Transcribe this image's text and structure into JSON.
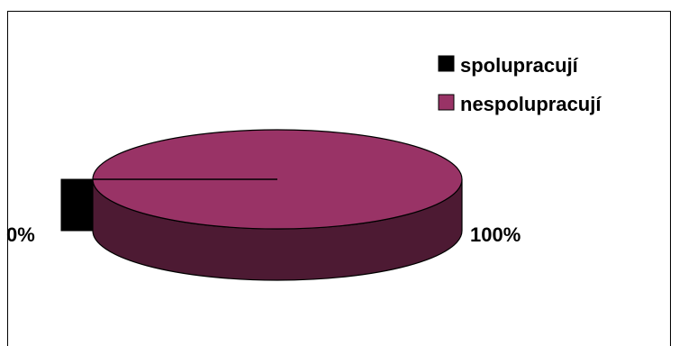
{
  "chart_data": {
    "type": "pie",
    "style": "3d",
    "categories": [
      "spolupracují",
      "nespolupracují"
    ],
    "values": [
      0,
      100
    ],
    "data_labels": [
      "0%",
      "100%"
    ],
    "colors": [
      "#000000",
      "#993366"
    ],
    "side_colors": [
      "#000000",
      "#4d1a33"
    ],
    "legend": {
      "placement": "top-right",
      "entries": [
        "spolupracují",
        "nespolupracují"
      ]
    }
  }
}
